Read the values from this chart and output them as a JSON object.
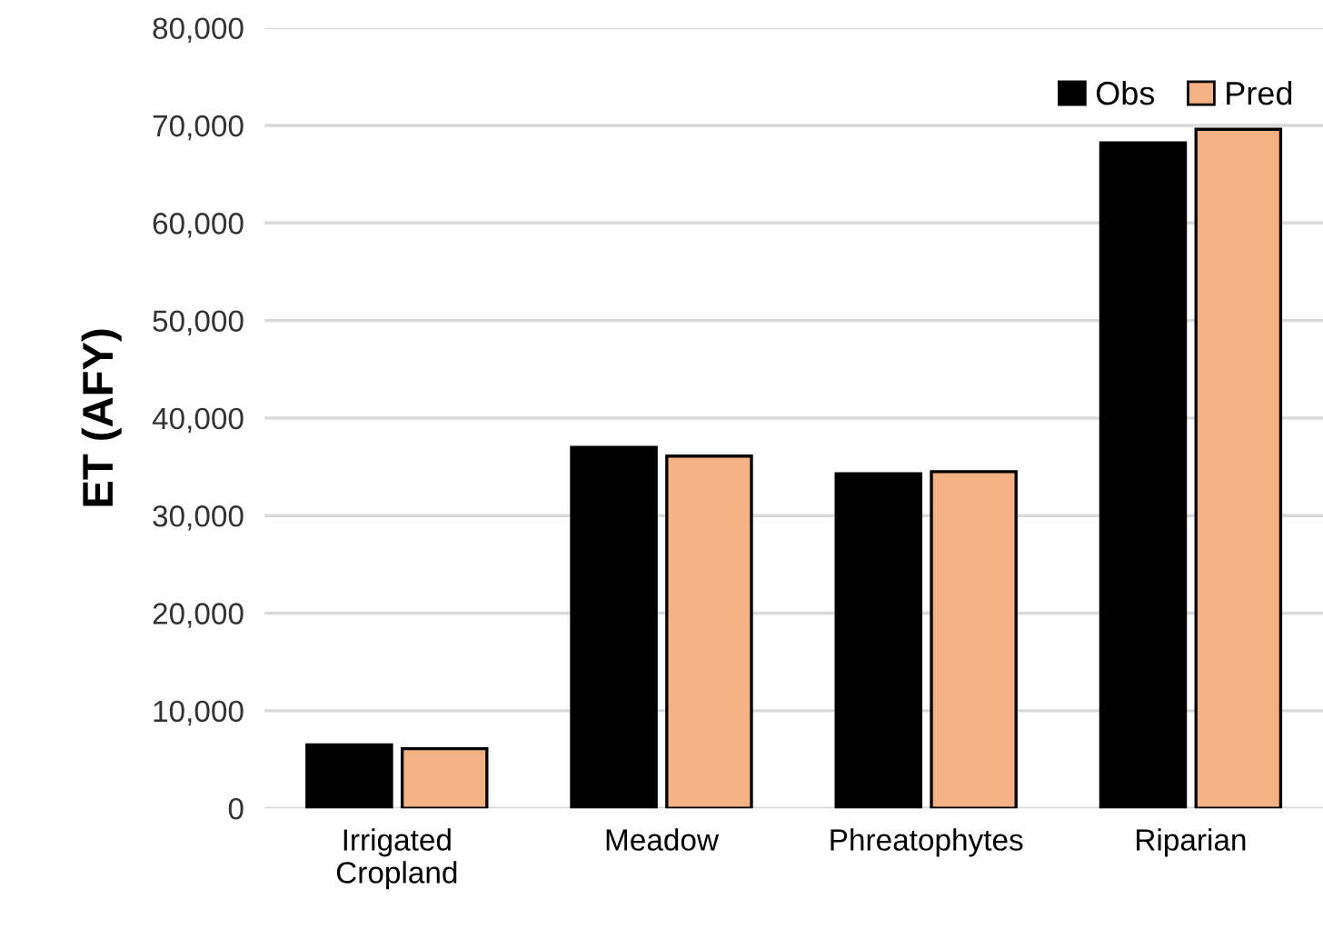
{
  "chart_data": {
    "type": "bar",
    "ylabel": "ET (AFY)",
    "categories": [
      "Irrigated\nCropland",
      "Meadow",
      "Phreatophytes",
      "Riparian"
    ],
    "series": [
      {
        "name": "Obs",
        "color": "#000000",
        "values": [
          6500,
          37000,
          34300,
          68200
        ]
      },
      {
        "name": "Pred",
        "color": "#f4b183",
        "values": [
          6100,
          36100,
          34500,
          69600
        ]
      }
    ],
    "ylim": [
      0,
      80000
    ],
    "yticks": [
      {
        "value": 0,
        "label": "0"
      },
      {
        "value": 10000,
        "label": "10,000"
      },
      {
        "value": 20000,
        "label": "20,000"
      },
      {
        "value": 30000,
        "label": "30,000"
      },
      {
        "value": 40000,
        "label": "40,000"
      },
      {
        "value": 50000,
        "label": "50,000"
      },
      {
        "value": 60000,
        "label": "60,000"
      },
      {
        "value": 70000,
        "label": "70,000"
      },
      {
        "value": 80000,
        "label": "80,000"
      }
    ],
    "grid": "y",
    "legend": "top right"
  }
}
